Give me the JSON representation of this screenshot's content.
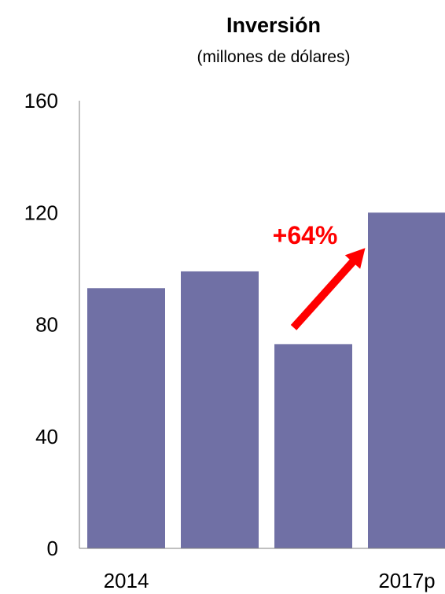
{
  "chart_data": {
    "type": "bar",
    "title": "Inversión",
    "subtitle": "(millones de dólares)",
    "categories": [
      "2014",
      "",
      "",
      "2017p"
    ],
    "values": [
      93,
      99,
      73,
      120
    ],
    "ylim": [
      0,
      160
    ],
    "yticks": [
      0,
      40,
      80,
      120,
      160
    ],
    "grid": false,
    "legend": "none",
    "bar_color": "#7070a5",
    "annotation": {
      "text": "+64%",
      "color": "#ff0000",
      "from_category_index": 2,
      "to_category_index": 3
    }
  }
}
